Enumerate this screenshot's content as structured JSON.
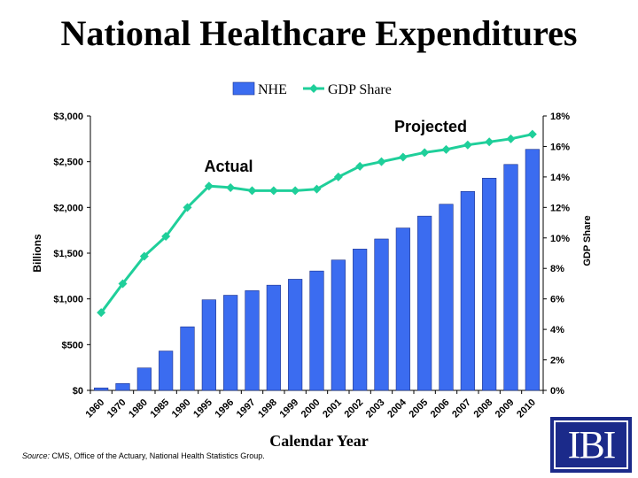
{
  "title": "National Healthcare Expenditures",
  "source": {
    "label": "Source:",
    "text": " CMS, Office of  the Actuary, National Health Statistics Group."
  },
  "logo": {
    "text": "IBI"
  },
  "colors": {
    "bar": "#3b6cf0",
    "bar_stroke": "#1a2f8a",
    "line": "#1fcf9a",
    "axis": "#000000"
  },
  "chart_data": {
    "type": "bar",
    "categories": [
      "1960",
      "1970",
      "1980",
      "1985",
      "1990",
      "1995",
      "1996",
      "1997",
      "1998",
      "1999",
      "2000",
      "2001",
      "2002",
      "2003",
      "2004",
      "2005",
      "2006",
      "2007",
      "2008",
      "2009",
      "2010"
    ],
    "series": [
      {
        "name": "NHE",
        "type": "bar",
        "axis": "left",
        "values": [
          27,
          75,
          245,
          430,
          695,
          990,
          1040,
          1090,
          1150,
          1215,
          1305,
          1425,
          1545,
          1655,
          1775,
          1905,
          2035,
          2175,
          2320,
          2470,
          2635
        ]
      },
      {
        "name": "GDP Share",
        "type": "line",
        "axis": "right",
        "values": [
          5.1,
          7.0,
          8.8,
          10.1,
          12.0,
          13.4,
          13.3,
          13.1,
          13.1,
          13.1,
          13.2,
          14.0,
          14.7,
          15.0,
          15.3,
          15.6,
          15.8,
          16.1,
          16.3,
          16.5,
          16.8
        ]
      }
    ],
    "xlabel": "Calendar Year",
    "ylabel": "Billions",
    "y2label": "GDP Share",
    "ylim": [
      0,
      3000
    ],
    "y2lim": [
      0,
      18
    ],
    "yticks": [
      "$0",
      "$500",
      "$1,000",
      "$1,500",
      "$2,000",
      "$2,500",
      "$3,000"
    ],
    "y2ticks": [
      "0%",
      "2%",
      "4%",
      "6%",
      "8%",
      "10%",
      "12%",
      "14%",
      "16%",
      "18%"
    ],
    "annotations": [
      "Actual",
      "Projected"
    ],
    "legend": "top-center",
    "grid": false
  }
}
